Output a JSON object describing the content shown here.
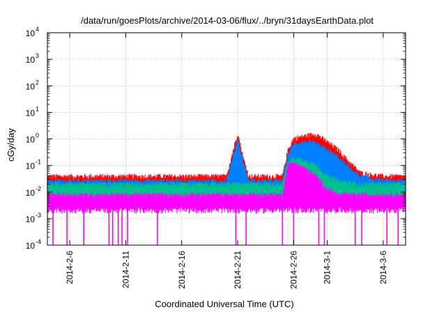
{
  "chart_data": {
    "type": "line",
    "title": "/data/run/goesPlots/archive/2014-03-06/flux/../bryn/31daysEarthData.plot",
    "xlabel": "Coordinated Universal Time (UTC)",
    "ylabel": "cGy/day",
    "yscale": "log",
    "ylim": [
      0.0001,
      10000
    ],
    "xlim": [
      "2014-02-04",
      "2014-03-08"
    ],
    "grid": true,
    "legend": "none",
    "y_ticks": [
      {
        "value": 0.0001,
        "base": "10",
        "exp": "-4"
      },
      {
        "value": 0.001,
        "base": "10",
        "exp": "-3"
      },
      {
        "value": 0.01,
        "base": "10",
        "exp": "-2"
      },
      {
        "value": 0.1,
        "base": "10",
        "exp": "-1"
      },
      {
        "value": 1,
        "base": "10",
        "exp": "0"
      },
      {
        "value": 10,
        "base": "10",
        "exp": "1"
      },
      {
        "value": 100,
        "base": "10",
        "exp": "2"
      },
      {
        "value": 1000,
        "base": "10",
        "exp": "3"
      },
      {
        "value": 10000,
        "base": "10",
        "exp": "4"
      }
    ],
    "x_ticks": [
      {
        "date": "2014-02-06",
        "label": "2014-2-6"
      },
      {
        "date": "2014-02-11",
        "label": "2014-2-11"
      },
      {
        "date": "2014-02-16",
        "label": "2014-2-16"
      },
      {
        "date": "2014-02-21",
        "label": "2014-2-21"
      },
      {
        "date": "2014-02-26",
        "label": "2014-2-26"
      },
      {
        "date": "2014-03-01",
        "label": "2014-3-1"
      },
      {
        "date": "2014-03-06",
        "label": "2014-3-6"
      }
    ],
    "series": [
      {
        "color": "#ff0000",
        "x": [
          "2014-02-04",
          "2014-02-08",
          "2014-02-12",
          "2014-02-16",
          "2014-02-20",
          "2014-02-21",
          "2014-02-21T12:00",
          "2014-02-22",
          "2014-02-25",
          "2014-02-25T12:00",
          "2014-02-26",
          "2014-02-27",
          "2014-02-28",
          "2014-03-01",
          "2014-03-02",
          "2014-03-03",
          "2014-03-04",
          "2014-03-06",
          "2014-03-08"
        ],
        "y": [
          0.03,
          0.03,
          0.03,
          0.03,
          0.03,
          1.3,
          0.15,
          0.03,
          0.03,
          0.3,
          0.8,
          1.0,
          1.2,
          0.6,
          0.3,
          0.1,
          0.04,
          0.03,
          0.03
        ]
      },
      {
        "color": "#0080ff",
        "x": [
          "2014-02-04",
          "2014-02-08",
          "2014-02-12",
          "2014-02-16",
          "2014-02-20",
          "2014-02-21",
          "2014-02-21T12:00",
          "2014-02-22",
          "2014-02-25",
          "2014-02-25T12:00",
          "2014-02-26",
          "2014-02-27",
          "2014-02-28",
          "2014-03-01",
          "2014-03-02",
          "2014-03-03",
          "2014-03-04",
          "2014-03-06",
          "2014-03-08"
        ],
        "y": [
          0.02,
          0.02,
          0.02,
          0.02,
          0.02,
          0.8,
          0.1,
          0.02,
          0.02,
          0.2,
          0.5,
          0.6,
          0.5,
          0.3,
          0.15,
          0.06,
          0.03,
          0.02,
          0.02
        ]
      },
      {
        "color": "#00c090",
        "x": [
          "2014-02-04",
          "2014-02-12",
          "2014-02-20",
          "2014-02-25",
          "2014-02-25T12:00",
          "2014-02-26",
          "2014-02-27",
          "2014-02-28",
          "2014-03-01",
          "2014-03-02",
          "2014-03-04",
          "2014-03-08"
        ],
        "y": [
          0.015,
          0.015,
          0.015,
          0.015,
          0.1,
          0.15,
          0.12,
          0.08,
          0.03,
          0.02,
          0.015,
          0.015
        ]
      },
      {
        "color": "#ff00ff",
        "x": [
          "2014-02-04",
          "2014-02-12",
          "2014-02-20",
          "2014-02-25",
          "2014-02-25T12:00",
          "2014-02-26",
          "2014-02-27",
          "2014-02-28",
          "2014-03-01",
          "2014-03-02",
          "2014-03-04",
          "2014-03-08"
        ],
        "y": [
          0.006,
          0.006,
          0.006,
          0.006,
          0.08,
          0.1,
          0.06,
          0.03,
          0.01,
          0.006,
          0.006,
          0.006
        ]
      }
    ]
  }
}
